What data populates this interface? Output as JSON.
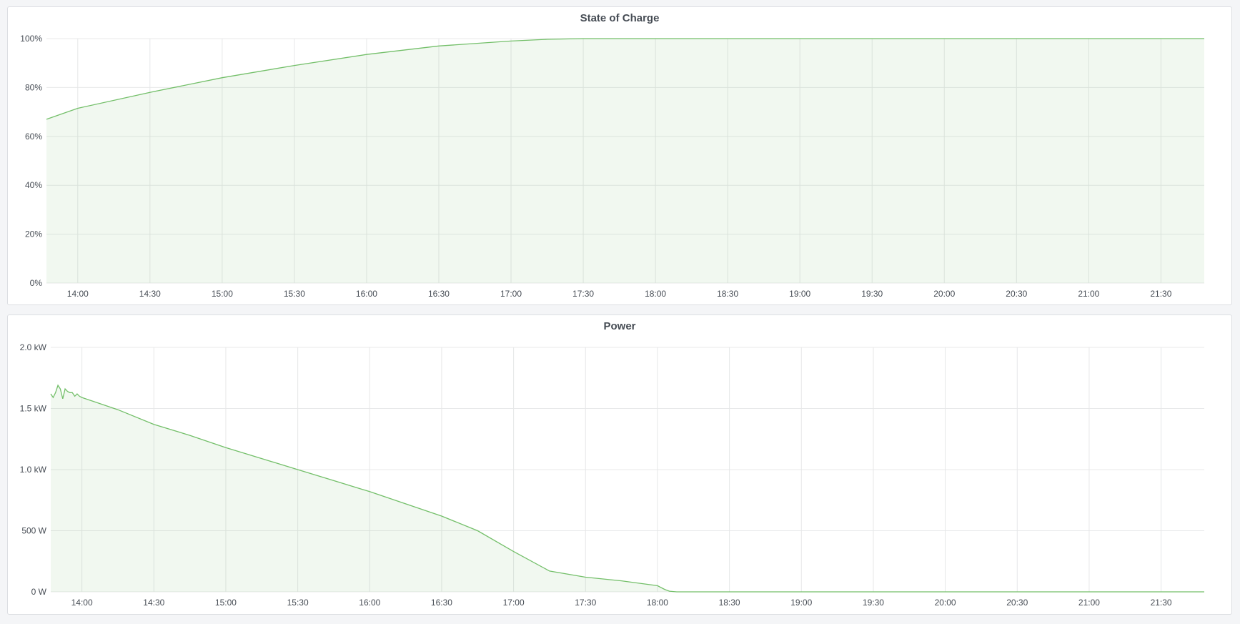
{
  "chart_data": [
    {
      "type": "area",
      "title": "State of Charge",
      "xlabel": "",
      "ylabel": "",
      "x_range": [
        "13:47",
        "21:48"
      ],
      "x_ticks": [
        "14:00",
        "14:30",
        "15:00",
        "15:30",
        "16:00",
        "16:30",
        "17:00",
        "17:30",
        "18:00",
        "18:30",
        "19:00",
        "19:30",
        "20:00",
        "20:30",
        "21:00",
        "21:30"
      ],
      "y_ticks": [
        "0%",
        "20%",
        "40%",
        "60%",
        "80%",
        "100%"
      ],
      "ylim": [
        0,
        100
      ],
      "unit": "%",
      "grid": true,
      "color": "#73bf69",
      "x": [
        "13:47",
        "14:00",
        "14:30",
        "15:00",
        "15:30",
        "16:00",
        "16:30",
        "17:00",
        "17:15",
        "17:30",
        "18:00",
        "21:48"
      ],
      "values": [
        67,
        71.5,
        78,
        84,
        89,
        93.5,
        97,
        99,
        99.7,
        100,
        100,
        100
      ]
    },
    {
      "type": "area",
      "title": "Power",
      "xlabel": "",
      "ylabel": "",
      "x_range": [
        "13:47",
        "21:48"
      ],
      "x_ticks": [
        "14:00",
        "14:30",
        "15:00",
        "15:30",
        "16:00",
        "16:30",
        "17:00",
        "17:30",
        "18:00",
        "18:30",
        "19:00",
        "19:30",
        "20:00",
        "20:30",
        "21:00",
        "21:30"
      ],
      "y_ticks": [
        "0 W",
        "500 W",
        "1.0 kW",
        "1.5 kW",
        "2.0 kW"
      ],
      "ylim": [
        0,
        2000
      ],
      "unit": "W",
      "grid": true,
      "color": "#73bf69",
      "x": [
        "13:47",
        "13:48",
        "13:49",
        "13:50",
        "13:51",
        "13:52",
        "13:53",
        "13:54",
        "13:55",
        "13:56",
        "13:57",
        "13:58",
        "13:59",
        "14:00",
        "14:15",
        "14:30",
        "14:45",
        "15:00",
        "15:15",
        "15:30",
        "15:45",
        "16:00",
        "16:15",
        "16:30",
        "16:45",
        "17:00",
        "17:15",
        "17:30",
        "17:45",
        "18:00",
        "18:03",
        "18:05",
        "18:08",
        "21:48"
      ],
      "values": [
        1620,
        1590,
        1630,
        1690,
        1660,
        1580,
        1660,
        1640,
        1630,
        1630,
        1600,
        1620,
        1600,
        1590,
        1490,
        1370,
        1280,
        1180,
        1090,
        1000,
        910,
        820,
        720,
        620,
        500,
        330,
        170,
        120,
        90,
        50,
        20,
        5,
        0,
        0
      ]
    }
  ]
}
